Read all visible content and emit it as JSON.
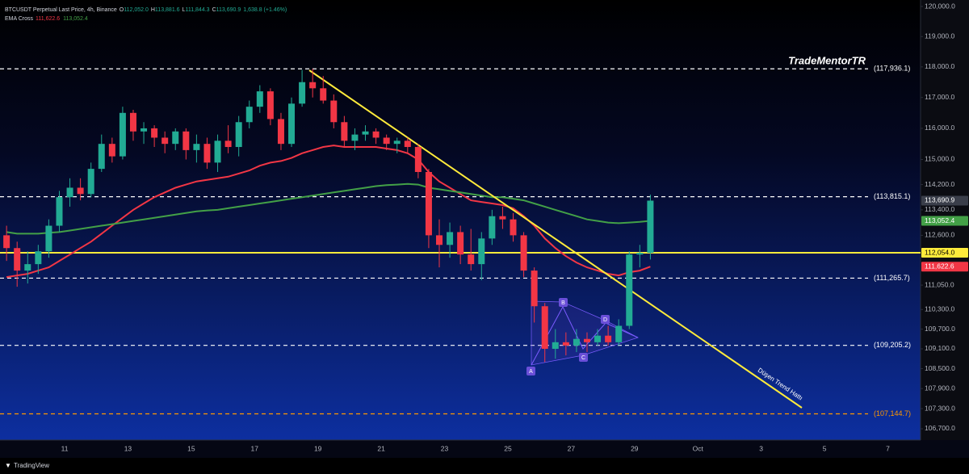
{
  "chart_data": {
    "type": "candlestick",
    "header": {
      "symbol": "BTCUSDT Perpetual Last Price, 4h, Binance",
      "ohlc": [
        {
          "label": "O",
          "value": "112,052.0"
        },
        {
          "label": "H",
          "value": "113,881.6"
        },
        {
          "label": "L",
          "value": "111,844.3"
        },
        {
          "label": "C",
          "value": "113,690.9"
        }
      ],
      "change": "1,638.8 (+1.46%)",
      "indicator": "EMA Cross",
      "indicator_values": [
        {
          "value": "111,622.6",
          "color": "#f23645"
        },
        {
          "value": "113,052.4",
          "color": "#43a047"
        }
      ]
    },
    "watermark": "TradeMentorTR",
    "brand": "TradingView",
    "categories": [
      null,
      null,
      null,
      null,
      null,
      null,
      "11",
      null,
      null,
      null,
      null,
      null,
      "13",
      null,
      null,
      null,
      null,
      null,
      "15",
      null,
      null,
      null,
      null,
      null,
      "17",
      null,
      null,
      null,
      null,
      null,
      "19",
      null,
      null,
      null,
      null,
      null,
      "21",
      null,
      null,
      null,
      null,
      null,
      "23",
      null,
      null,
      null,
      null,
      null,
      "25",
      null,
      null,
      null,
      null,
      null,
      "27",
      null,
      null,
      null,
      null,
      null,
      "29",
      null,
      null,
      null,
      null,
      null,
      "Oct",
      null,
      null,
      null,
      null,
      null,
      "3",
      null,
      null,
      null,
      null,
      null,
      "5",
      null,
      null,
      null,
      null,
      null,
      "7",
      null,
      null
    ],
    "candles": {
      "up_color": "#22ab94",
      "down_color": "#f23645",
      "open": [
        112600,
        112200,
        111500,
        111700,
        112100,
        112900,
        113800,
        114100,
        113900,
        114700,
        115500,
        115100,
        116500,
        115900,
        116000,
        115700,
        115500,
        115900,
        115300,
        115500,
        114900,
        115600,
        115400,
        116200,
        116700,
        117200,
        116300,
        115500,
        116800,
        117500,
        117300,
        116900,
        116200,
        115600,
        115800,
        115900,
        115700,
        115500,
        115600,
        115400,
        114600,
        112600,
        112300,
        112700,
        112000,
        111700,
        112500,
        113200,
        113100,
        112600,
        111500,
        110400,
        109100,
        109300,
        109200,
        109400,
        109300,
        109500,
        109300,
        109800,
        112000,
        112052,
        null,
        null,
        null,
        null,
        null,
        null,
        null,
        null,
        null,
        null,
        null,
        null,
        null,
        null,
        null,
        null,
        null,
        null,
        null,
        null,
        null,
        null,
        null,
        null,
        null
      ],
      "high": [
        112900,
        112400,
        112100,
        112300,
        113100,
        114000,
        114400,
        114400,
        114900,
        115800,
        115700,
        116700,
        116600,
        116200,
        116100,
        115900,
        116000,
        116000,
        115800,
        115700,
        115800,
        116100,
        116400,
        116900,
        117400,
        117300,
        116500,
        117000,
        117900,
        117936,
        117700,
        117100,
        116400,
        116000,
        116100,
        116000,
        115800,
        115700,
        115700,
        115500,
        114700,
        113100,
        113000,
        112900,
        112800,
        112700,
        113400,
        113500,
        113300,
        112700,
        111600,
        110500,
        109700,
        109600,
        109700,
        109600,
        109700,
        109800,
        110000,
        112100,
        112300,
        113881.6,
        null,
        null,
        null,
        null,
        null,
        null,
        null,
        null,
        null,
        null,
        null,
        null,
        null,
        null,
        null,
        null,
        null,
        null,
        null,
        null,
        null,
        null,
        null,
        null,
        null
      ],
      "low": [
        111800,
        111000,
        111100,
        111400,
        111900,
        112700,
        113500,
        113700,
        113800,
        114600,
        114900,
        115000,
        115600,
        115500,
        115400,
        115200,
        115300,
        115000,
        114900,
        114700,
        114600,
        115200,
        115100,
        116000,
        116500,
        116100,
        115300,
        115400,
        116700,
        117000,
        116800,
        116000,
        115400,
        115300,
        115600,
        115500,
        115300,
        115200,
        115200,
        114400,
        112200,
        111600,
        111900,
        111700,
        111500,
        111200,
        112300,
        112800,
        112400,
        111300,
        109900,
        108700,
        108800,
        108900,
        109000,
        109000,
        109200,
        109200,
        109200,
        109700,
        111600,
        111844.3,
        null,
        null,
        null,
        null,
        null,
        null,
        null,
        null,
        null,
        null,
        null,
        null,
        null,
        null,
        null,
        null,
        null,
        null,
        null,
        null,
        null,
        null,
        null,
        null,
        null
      ],
      "close": [
        112200,
        111500,
        111700,
        112100,
        112900,
        113800,
        114100,
        113900,
        114700,
        115500,
        115100,
        116500,
        115900,
        116000,
        115700,
        115500,
        115900,
        115300,
        115500,
        114900,
        115600,
        115400,
        116200,
        116700,
        117200,
        116300,
        115500,
        116800,
        117500,
        117300,
        116900,
        116200,
        115600,
        115800,
        115900,
        115700,
        115500,
        115600,
        115400,
        114600,
        112600,
        112300,
        112700,
        112000,
        111700,
        112500,
        113200,
        113100,
        112600,
        111500,
        110400,
        109100,
        109300,
        109200,
        109400,
        109300,
        109500,
        109300,
        109800,
        112000,
        112052,
        113690.9,
        null,
        null,
        null,
        null,
        null,
        null,
        null,
        null,
        null,
        null,
        null,
        null,
        null,
        null,
        null,
        null,
        null,
        null,
        null,
        null,
        null,
        null,
        null,
        null,
        null
      ]
    },
    "lines": [
      {
        "color": "#f23645",
        "values": [
          111300,
          111350,
          111400,
          111500,
          111600,
          111800,
          112000,
          112200,
          112400,
          112650,
          112900,
          113150,
          113400,
          113600,
          113800,
          113950,
          114100,
          114200,
          114300,
          114350,
          114400,
          114450,
          114550,
          114650,
          114800,
          114900,
          114950,
          115050,
          115200,
          115300,
          115400,
          115450,
          115400,
          115400,
          115400,
          115400,
          115350,
          115300,
          115200,
          115000,
          114600,
          114300,
          114100,
          113900,
          113700,
          113650,
          113600,
          113550,
          113450,
          113200,
          112900,
          112500,
          112200,
          111950,
          111750,
          111600,
          111500,
          111400,
          111350,
          111450,
          111500,
          111622.6,
          null,
          null,
          null,
          null,
          null,
          null,
          null,
          null,
          null,
          null,
          null,
          null,
          null,
          null,
          null,
          null,
          null,
          null,
          null,
          null,
          null,
          null,
          null,
          null,
          null
        ]
      },
      {
        "color": "#43a047",
        "values": [
          112700,
          112650,
          112650,
          112650,
          112680,
          112700,
          112750,
          112800,
          112850,
          112900,
          112950,
          113000,
          113050,
          113100,
          113150,
          113200,
          113250,
          113300,
          113350,
          113380,
          113400,
          113450,
          113500,
          113550,
          113600,
          113650,
          113700,
          113750,
          113800,
          113850,
          113900,
          113950,
          114000,
          114050,
          114100,
          114150,
          114180,
          114200,
          114220,
          114200,
          114100,
          114050,
          114000,
          113950,
          113900,
          113850,
          113800,
          113800,
          113750,
          113700,
          113600,
          113500,
          113400,
          113300,
          113200,
          113100,
          113050,
          113000,
          112980,
          113000,
          113020,
          113052.4,
          null,
          null,
          null,
          null,
          null,
          null,
          null,
          null,
          null,
          null,
          null,
          null,
          null,
          null,
          null,
          null,
          null,
          null,
          null,
          null,
          null,
          null,
          null,
          null,
          null
        ]
      }
    ],
    "log_scale": true,
    "ylim": [
      106365,
      120216
    ],
    "yticks": [
      {
        "value": 120000,
        "label": "120,000.0"
      },
      {
        "value": 119000,
        "label": "119,000.0"
      },
      {
        "value": 118000,
        "label": "118,000.0"
      },
      {
        "value": 117000,
        "label": "117,000.0"
      },
      {
        "value": 116000,
        "label": "116,000.0"
      },
      {
        "value": 115000,
        "label": "115,000.0"
      },
      {
        "value": 114200,
        "label": "114,200.0"
      },
      {
        "value": 113400,
        "label": "113,400.0"
      },
      {
        "value": 112600,
        "label": "112,600.0"
      },
      {
        "value": 111050,
        "label": "111,050.0"
      },
      {
        "value": 110300,
        "label": "110,300.0"
      },
      {
        "value": 109700,
        "label": "109,700.0"
      },
      {
        "value": 109100,
        "label": "109,100.0"
      },
      {
        "value": 108500,
        "label": "108,500.0"
      },
      {
        "value": 107900,
        "label": "107,900.0"
      },
      {
        "value": 107300,
        "label": "107,300.0"
      },
      {
        "value": 106700,
        "label": "106,700.0"
      }
    ],
    "levels": [
      {
        "value": 117936.1,
        "label": "(117,936.1)",
        "color": "#ffffff"
      },
      {
        "value": 113815.1,
        "label": "(113,815.1)",
        "color": "#ffffff"
      },
      {
        "value": 111265.7,
        "label": "(111,265.7)",
        "color": "#ffffff"
      },
      {
        "value": 109205.2,
        "label": "(109,205.2)",
        "color": "#ffffff"
      },
      {
        "value": 107144.7,
        "label": "(107,144.7)",
        "color": "#ff9800"
      }
    ],
    "support_line": {
      "value": 112054.0,
      "color": "#ffeb3b"
    },
    "price_tags": [
      {
        "value": 113690.9,
        "label": "113,690.9",
        "color": "#3a3e4a",
        "text_color": "#ffffff"
      },
      {
        "value": 113052.4,
        "label": "113,052.4",
        "color": "#43a047",
        "text_color": "#ffffff"
      },
      {
        "value": 112054.0,
        "label": "112,054.0",
        "color": "#ffeb3b",
        "text_color": "#000000"
      },
      {
        "value": 111622.6,
        "label": "111,622.6",
        "color": "#f23645",
        "text_color": "#ffffff"
      }
    ],
    "trendline_label": "Düşen Trend Hattı",
    "pattern_points": [
      "A",
      "B",
      "C",
      "D"
    ]
  }
}
